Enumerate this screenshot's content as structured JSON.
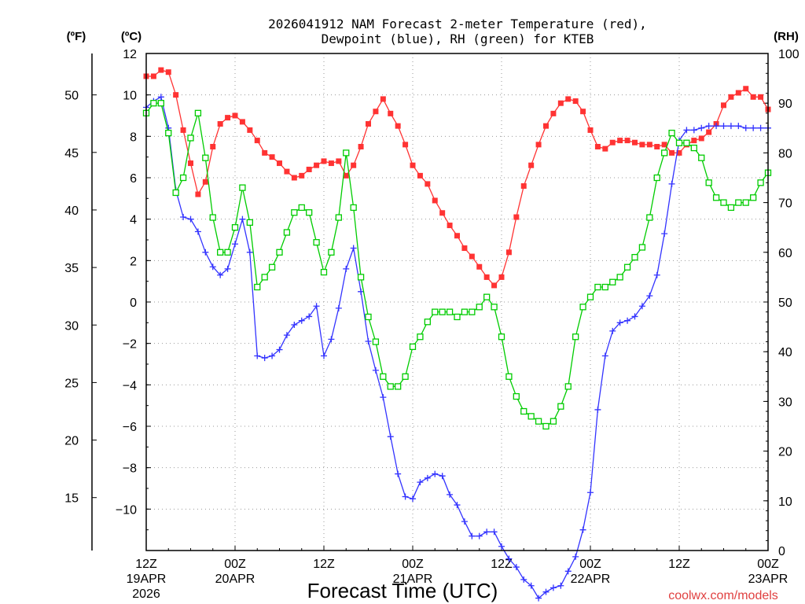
{
  "chart_data": {
    "type": "line",
    "title_line1": "2026041912 NAM Forecast 2-meter Temperature (red),",
    "title_line2": "Dewpoint (blue), RH (green) for KTEB",
    "unit_f": "(ºF)",
    "unit_c": "(ºC)",
    "unit_rh": "(RH)",
    "xlabel": "Forecast Time (UTC)",
    "credit": "coolwx.com/models",
    "x_range_hours": [
      0,
      84
    ],
    "c_range": [
      -12,
      12
    ],
    "rh_range": [
      0,
      100
    ],
    "c_ticks": [
      12,
      10,
      8,
      6,
      4,
      2,
      0,
      -2,
      -4,
      -6,
      -8,
      -10
    ],
    "f_ticks": [
      50,
      45,
      40,
      35,
      30,
      25,
      20,
      15
    ],
    "rh_ticks": [
      100,
      90,
      80,
      70,
      60,
      50,
      40,
      30,
      20,
      10,
      0
    ],
    "x_ticks": [
      {
        "hour": 0,
        "line1": "12Z",
        "line2": "19APR",
        "line3": "2026"
      },
      {
        "hour": 12,
        "line1": "00Z",
        "line2": "20APR",
        "line3": ""
      },
      {
        "hour": 24,
        "line1": "12Z",
        "line2": "",
        "line3": ""
      },
      {
        "hour": 36,
        "line1": "00Z",
        "line2": "21APR",
        "line3": ""
      },
      {
        "hour": 48,
        "line1": "12Z",
        "line2": "",
        "line3": ""
      },
      {
        "hour": 60,
        "line1": "00Z",
        "line2": "22APR",
        "line3": ""
      },
      {
        "hour": 72,
        "line1": "12Z",
        "line2": "",
        "line3": ""
      },
      {
        "hour": 84,
        "line1": "00Z",
        "line2": "23APR",
        "line3": ""
      }
    ],
    "series": [
      {
        "name": "Temperature",
        "units": "C",
        "color": "#ff3333",
        "marker": "filled-square",
        "x": [
          0,
          1,
          2,
          3,
          4,
          5,
          6,
          7,
          8,
          9,
          10,
          11,
          12,
          13,
          14,
          15,
          16,
          17,
          18,
          19,
          20,
          21,
          22,
          23,
          24,
          25,
          26,
          27,
          28,
          29,
          30,
          31,
          32,
          33,
          34,
          35,
          36,
          37,
          38,
          39,
          40,
          41,
          42,
          43,
          44,
          45,
          46,
          47,
          48,
          49,
          50,
          51,
          52,
          53,
          54,
          55,
          56,
          57,
          58,
          59,
          60,
          61,
          62,
          63,
          64,
          65,
          66,
          67,
          68,
          69,
          70,
          71,
          72,
          73,
          74,
          75,
          76,
          77,
          78,
          79,
          80,
          81,
          82,
          83,
          84
        ],
        "values": [
          10.9,
          10.9,
          11.2,
          11.1,
          10.0,
          8.3,
          6.7,
          5.2,
          5.8,
          7.5,
          8.6,
          8.9,
          9.0,
          8.7,
          8.3,
          7.8,
          7.2,
          7.0,
          6.7,
          6.3,
          6.0,
          6.1,
          6.4,
          6.6,
          6.8,
          6.7,
          6.8,
          6.1,
          6.6,
          7.5,
          8.6,
          9.2,
          9.8,
          9.1,
          8.5,
          7.6,
          6.6,
          6.1,
          5.7,
          4.9,
          4.3,
          3.7,
          3.2,
          2.6,
          2.2,
          1.7,
          1.2,
          0.8,
          1.2,
          2.4,
          4.1,
          5.6,
          6.6,
          7.6,
          8.5,
          9.1,
          9.6,
          9.8,
          9.7,
          9.2,
          8.3,
          7.5,
          7.4,
          7.7,
          7.8,
          7.8,
          7.7,
          7.6,
          7.6,
          7.5,
          7.6,
          7.2,
          7.2,
          7.6,
          7.8,
          7.9,
          8.2,
          8.6,
          9.5,
          9.9,
          10.1,
          10.3,
          9.9,
          9.9,
          9.3
        ]
      },
      {
        "name": "Dewpoint",
        "units": "C",
        "color": "#3333ff",
        "marker": "plus",
        "x": [
          0,
          1,
          2,
          3,
          4,
          5,
          6,
          7,
          8,
          9,
          10,
          11,
          12,
          13,
          14,
          15,
          16,
          17,
          18,
          19,
          20,
          21,
          22,
          23,
          24,
          25,
          26,
          27,
          28,
          29,
          30,
          31,
          32,
          33,
          34,
          35,
          36,
          37,
          38,
          39,
          40,
          41,
          42,
          43,
          44,
          45,
          46,
          47,
          48,
          49,
          50,
          51,
          52,
          53,
          54,
          55,
          56,
          57,
          58,
          59,
          60,
          61,
          62,
          63,
          64,
          65,
          66,
          67,
          68,
          69,
          70,
          71,
          72,
          73,
          74,
          75,
          76,
          77,
          78,
          79,
          80,
          81,
          82,
          83,
          84
        ],
        "values": [
          9.4,
          9.7,
          9.9,
          8.4,
          5.4,
          4.1,
          4.0,
          3.4,
          2.4,
          1.7,
          1.3,
          1.6,
          2.8,
          4.0,
          2.4,
          -2.6,
          -2.7,
          -2.6,
          -2.3,
          -1.6,
          -1.1,
          -0.9,
          -0.7,
          -0.2,
          -2.6,
          -1.8,
          -0.3,
          1.6,
          2.6,
          0.5,
          -1.9,
          -3.3,
          -4.6,
          -6.5,
          -8.3,
          -9.4,
          -9.5,
          -8.7,
          -8.5,
          -8.3,
          -8.4,
          -9.3,
          -9.8,
          -10.6,
          -11.3,
          -11.3,
          -11.1,
          -11.1,
          -11.8,
          -12.4,
          -12.8,
          -13.4,
          -13.7,
          -14.3,
          -14.0,
          -13.8,
          -13.7,
          -13.0,
          -12.3,
          -11.0,
          -9.2,
          -5.2,
          -2.6,
          -1.4,
          -1.0,
          -0.9,
          -0.7,
          -0.2,
          0.3,
          1.3,
          3.3,
          5.7,
          7.8,
          8.3,
          8.3,
          8.4,
          8.5,
          8.5,
          8.5,
          8.5,
          8.5,
          8.4,
          8.4,
          8.4,
          8.4
        ]
      },
      {
        "name": "RH",
        "units": "%",
        "color": "#00cc00",
        "marker": "open-square",
        "x": [
          0,
          1,
          2,
          3,
          4,
          5,
          6,
          7,
          8,
          9,
          10,
          11,
          12,
          13,
          14,
          15,
          16,
          17,
          18,
          19,
          20,
          21,
          22,
          23,
          24,
          25,
          26,
          27,
          28,
          29,
          30,
          31,
          32,
          33,
          34,
          35,
          36,
          37,
          38,
          39,
          40,
          41,
          42,
          43,
          44,
          45,
          46,
          47,
          48,
          49,
          50,
          51,
          52,
          53,
          54,
          55,
          56,
          57,
          58,
          59,
          60,
          61,
          62,
          63,
          64,
          65,
          66,
          67,
          68,
          69,
          70,
          71,
          72,
          73,
          74,
          75,
          76,
          77,
          78,
          79,
          80,
          81,
          82,
          83,
          84
        ],
        "values": [
          88,
          90,
          90,
          84,
          72,
          75,
          83,
          88,
          79,
          67,
          60,
          60,
          65,
          73,
          66,
          53,
          55,
          57,
          60,
          64,
          68,
          69,
          68,
          62,
          56,
          60,
          67,
          80,
          69,
          55,
          47,
          42,
          35,
          33,
          33,
          35,
          41,
          43,
          46,
          48,
          48,
          48,
          47,
          48,
          48,
          49,
          51,
          49,
          43,
          35,
          31,
          28,
          27,
          26,
          25,
          26,
          29,
          33,
          43,
          49,
          51,
          53,
          53,
          54,
          55,
          57,
          59,
          61,
          67,
          75,
          80,
          84,
          82,
          82,
          81,
          79,
          74,
          71,
          70,
          69,
          70,
          70,
          71,
          74,
          76
        ]
      }
    ]
  }
}
